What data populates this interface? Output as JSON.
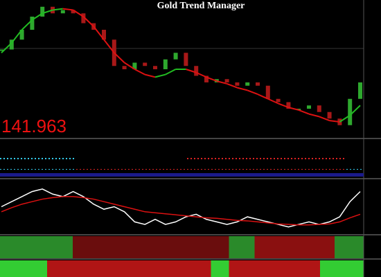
{
  "title": "Gold Trend Manager",
  "price_label": "141.963",
  "chart_data": [
    {
      "type": "price",
      "ylim": [
        0,
        100
      ],
      "series": [
        {
          "color": "#cccccc",
          "values": [
            65,
            72.5,
            80,
            90,
            97.5,
            92.5,
            95,
            92.5,
            85,
            80,
            72.5,
            52.5,
            50,
            55,
            52.5,
            50,
            57.5,
            62.5,
            52.5,
            45,
            40,
            42.5,
            40,
            37.5,
            40,
            37.5,
            27.5,
            25,
            20,
            20,
            22.5,
            17.5,
            12.5,
            7.5,
            27.5,
            40
          ]
        },
        {
          "color": "#dd1111",
          "values": [
            62.5,
            70,
            80,
            87.5,
            92.5,
            95,
            96,
            95,
            90,
            82.5,
            72.5,
            62.5,
            55,
            50,
            46,
            44,
            46,
            50,
            50,
            47.5,
            44,
            41,
            39,
            36,
            34,
            31,
            27.5,
            24,
            21,
            19,
            16,
            14,
            11,
            10,
            15,
            22.5
          ]
        }
      ]
    },
    {
      "type": "oscillator",
      "ylim": [
        0,
        100
      ],
      "series": [
        {
          "color": "#ffffff",
          "values": [
            50,
            60,
            70,
            80,
            85,
            75,
            70,
            80,
            70,
            55,
            45,
            50,
            40,
            20,
            15,
            25,
            15,
            20,
            30,
            35,
            25,
            20,
            15,
            20,
            30,
            25,
            20,
            15,
            10,
            15,
            20,
            15,
            20,
            30,
            60,
            80
          ]
        },
        {
          "color": "#dd1111",
          "values": [
            40,
            48,
            55,
            60,
            65,
            68,
            70,
            70,
            68,
            65,
            60,
            55,
            50,
            45,
            40,
            38,
            36,
            34,
            32,
            30,
            28,
            27,
            25,
            23,
            22,
            20,
            18,
            16,
            15,
            14,
            14,
            15,
            16,
            20,
            28,
            35
          ]
        }
      ]
    }
  ]
}
